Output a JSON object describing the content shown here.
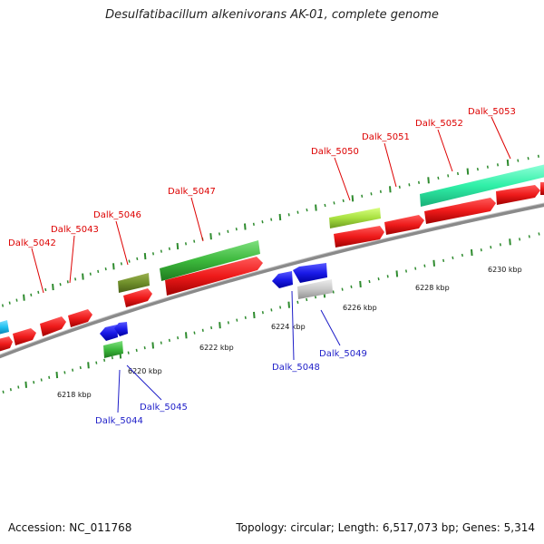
{
  "header": {
    "title": "Desulfatibacillum alkenivorans AK-01, complete genome"
  },
  "footer": {
    "accession": "Accession: NC_011768",
    "summary": "Topology: circular; Length: 6,517,073 bp; Genes: 5,314"
  },
  "colors": {
    "backbone": "#8a8a8a",
    "cds_forward": "#e82020",
    "cds_reverse": "#1a1ae0",
    "tick": "#2e8b2e",
    "label_forward": "#dd0000",
    "label_reverse": "#1d1dc8",
    "feature_green": "#3cc43c",
    "feature_olive": "#6f8f2a",
    "feature_lime": "#a8e040",
    "feature_teal": "#30f0a8",
    "feature_cyan": "#20c0f0",
    "feature_gray": "#c0c0c0"
  },
  "kbp_labels": [
    "6218 kbp",
    "6220 kbp",
    "6222 kbp",
    "6224 kbp",
    "6226 kbp",
    "6228 kbp",
    "6230 kbp"
  ],
  "top_labels": [
    "Dalk_5042",
    "Dalk_5043",
    "Dalk_5046",
    "Dalk_5047",
    "Dalk_5050",
    "Dalk_5051",
    "Dalk_5052",
    "Dalk_5053"
  ],
  "bottom_labels": [
    "Dalk_5044",
    "Dalk_5045",
    "Dalk_5048",
    "Dalk_5049"
  ]
}
